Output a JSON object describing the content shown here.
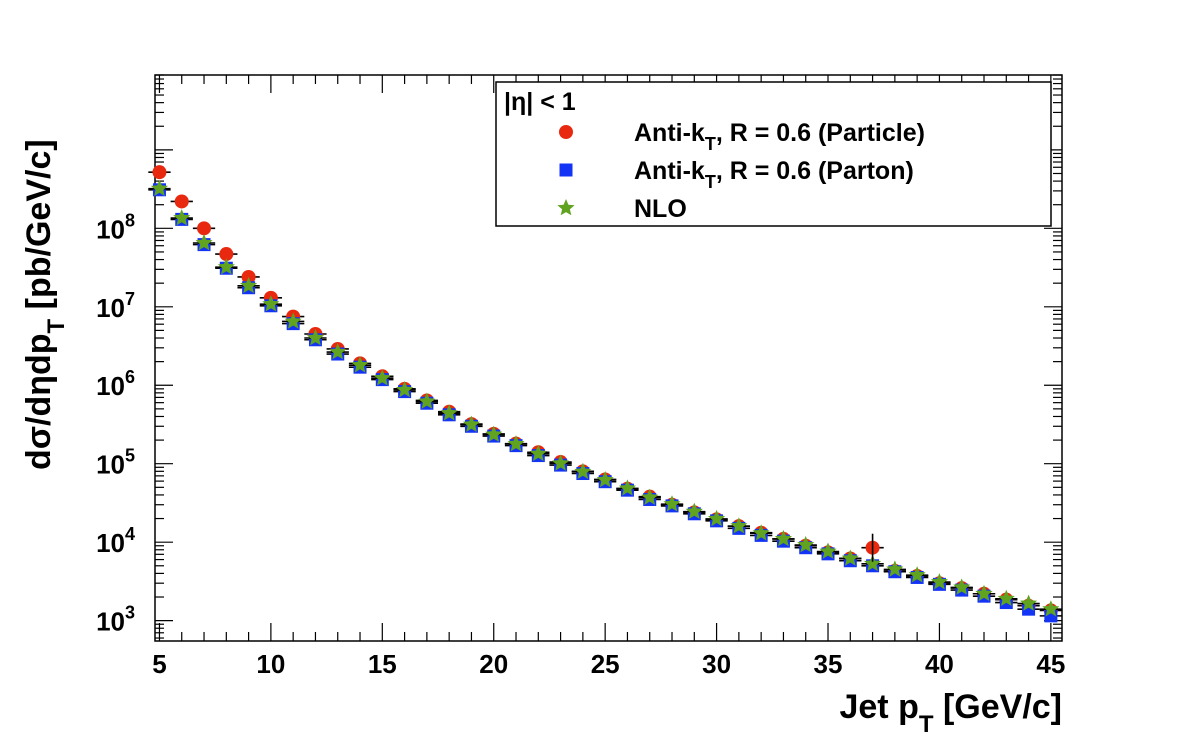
{
  "chart_data": {
    "type": "scatter",
    "xlabel_main": "Jet p",
    "xlabel_sub": "T",
    "xlabel_unit": " [GeV/c]",
    "ylabel_main": "dσ/dηdp",
    "ylabel_sub": "T",
    "ylabel_unit": " [pb/GeV/c]",
    "xlim": [
      4.8,
      45.5
    ],
    "ylim": [
      550,
      9000000000
    ],
    "yscale": "log",
    "xticks": [
      5,
      10,
      15,
      20,
      25,
      30,
      35,
      40,
      45
    ],
    "yticks": [
      {
        "base": "10",
        "exp": "3",
        "value": 1000
      },
      {
        "base": "10",
        "exp": "4",
        "value": 10000
      },
      {
        "base": "10",
        "exp": "5",
        "value": 100000
      },
      {
        "base": "10",
        "exp": "6",
        "value": 1000000
      },
      {
        "base": "10",
        "exp": "7",
        "value": 10000000
      },
      {
        "base": "10",
        "exp": "8",
        "value": 100000000
      }
    ],
    "legend": {
      "title": "|η| < 1",
      "placement": "top-right"
    },
    "x": [
      5,
      6,
      7,
      8,
      9,
      10,
      11,
      12,
      13,
      14,
      15,
      16,
      17,
      18,
      19,
      20,
      21,
      22,
      23,
      24,
      25,
      26,
      27,
      28,
      29,
      30,
      31,
      32,
      33,
      34,
      35,
      36,
      37,
      38,
      39,
      40,
      41,
      42,
      43,
      44,
      45
    ],
    "series": [
      {
        "label_main": "Anti-k",
        "label_sub": "T",
        "label_rest": ", R = 0.6 (Particle)",
        "marker": "circle",
        "color": "#e8290f",
        "values": [
          520000000,
          220000000,
          100000000,
          47000000,
          24000000,
          13000000,
          7500000,
          4500000,
          2900000,
          1900000,
          1300000,
          900000,
          640000,
          460000,
          320000,
          240000,
          180000,
          140000,
          105000,
          80000,
          63000,
          48000,
          38000,
          30000,
          24000,
          19500,
          16000,
          13200,
          11000,
          9000,
          7400,
          6200,
          8500,
          4300,
          3700,
          3000,
          2600,
          2200,
          1850,
          1550,
          1350
        ]
      },
      {
        "label_main": "Anti-k",
        "label_sub": "T",
        "label_rest": ", R = 0.6 (Parton)",
        "marker": "square",
        "color": "#1434f5",
        "values": [
          310000000,
          130000000,
          62000000,
          31000000,
          17500000,
          10300000,
          6100000,
          3800000,
          2500000,
          1700000,
          1180000,
          830000,
          590000,
          420000,
          300000,
          225000,
          170000,
          127000,
          96000,
          75000,
          59000,
          46000,
          35000,
          29000,
          23000,
          18700,
          15000,
          12200,
          10300,
          8500,
          7100,
          5800,
          5000,
          4200,
          3550,
          2900,
          2450,
          2050,
          1700,
          1400,
          1150
        ]
      },
      {
        "label_main": "NLO",
        "label_sub": "",
        "label_rest": "",
        "marker": "star",
        "color": "#5fa320",
        "values": [
          320000000,
          135000000,
          65000000,
          32000000,
          18500000,
          10800000,
          6500000,
          4000000,
          2650000,
          1800000,
          1230000,
          870000,
          620000,
          440000,
          315000,
          235000,
          178000,
          134000,
          101000,
          79000,
          62000,
          48500,
          37000,
          30500,
          24500,
          19800,
          16000,
          13000,
          11000,
          9200,
          7600,
          6200,
          5300,
          4500,
          3800,
          3100,
          2650,
          2200,
          1900,
          1650,
          1400
        ]
      }
    ]
  }
}
